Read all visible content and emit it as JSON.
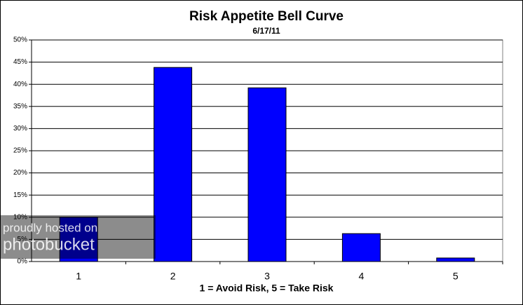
{
  "chart_data": {
    "type": "bar",
    "title": "Risk Appetite Bell Curve",
    "subtitle": "6/17/11",
    "x_label": "1 = Avoid Risk, 5 = Take Risk",
    "categories": [
      "1",
      "2",
      "3",
      "4",
      "5"
    ],
    "values": [
      10.0,
      43.8,
      39.2,
      6.3,
      0.8
    ],
    "color": "#0000ff",
    "ylim": [
      0,
      50
    ],
    "yticks": [
      {
        "value": 0,
        "label": "0%"
      },
      {
        "value": 5,
        "label": "5%"
      },
      {
        "value": 10,
        "label": "10%"
      },
      {
        "value": 15,
        "label": "15%"
      },
      {
        "value": 20,
        "label": "20%"
      },
      {
        "value": 25,
        "label": "25%"
      },
      {
        "value": 30,
        "label": "30%"
      },
      {
        "value": 35,
        "label": "35%"
      },
      {
        "value": 40,
        "label": "40%"
      },
      {
        "value": 45,
        "label": "45%"
      },
      {
        "value": 50,
        "label": "50%"
      }
    ],
    "grid": true,
    "watermark": [
      "proudly hosted on",
      "photobucket"
    ]
  }
}
